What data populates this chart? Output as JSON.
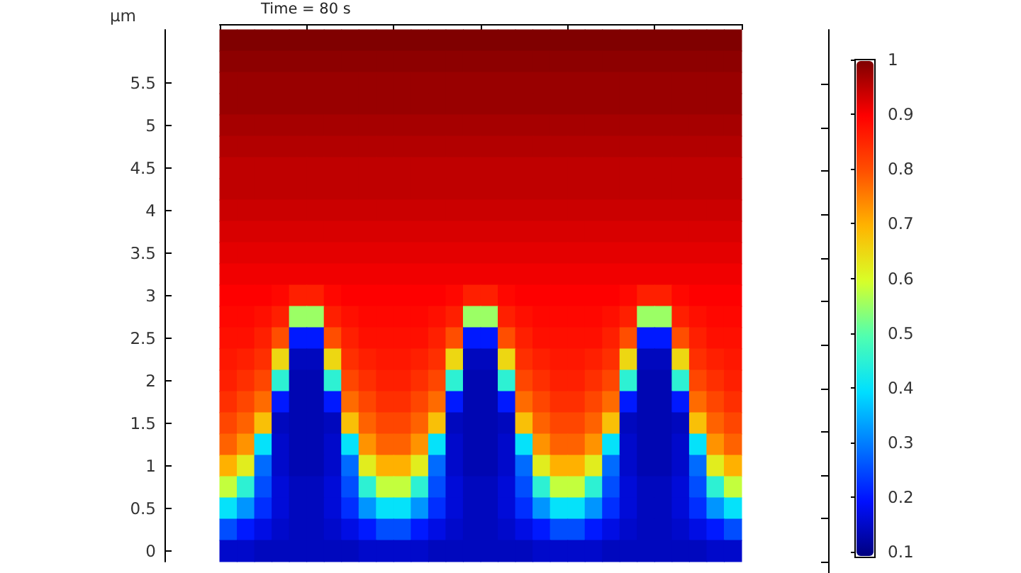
{
  "chart_data": {
    "type": "heatmap",
    "title": "Time = 80 s",
    "ylabel": "µm",
    "categories": [
      null,
      null,
      null,
      null,
      null,
      null,
      null,
      null,
      null,
      null,
      null,
      null,
      null,
      null,
      null,
      null,
      null,
      null,
      null,
      null,
      null,
      null,
      null,
      null,
      null,
      null,
      null,
      null,
      null,
      null
    ],
    "y_categories": [
      null,
      null,
      "5.5",
      null,
      "5",
      null,
      "4.5",
      null,
      "4",
      null,
      "3.5",
      null,
      "3",
      null,
      "2.5",
      null,
      "2",
      null,
      "1.5",
      null,
      "1",
      null,
      "0.5",
      null,
      "0"
    ],
    "clim": [
      0.09,
      1
    ],
    "cticks": [
      0.1,
      0.2,
      0.3,
      0.4,
      0.5,
      0.6,
      0.7,
      0.8,
      0.9,
      1
    ],
    "cells": [
      [
        1,
        1,
        1,
        1,
        1,
        1,
        1,
        1,
        1,
        1,
        1,
        1,
        1,
        1,
        1,
        1,
        1,
        1,
        1,
        1,
        1,
        1,
        1,
        1,
        1,
        1,
        1,
        1,
        1,
        1
      ],
      [
        0.99,
        0.99,
        0.99,
        0.99,
        0.99,
        0.99,
        0.99,
        0.99,
        0.99,
        0.99,
        0.99,
        0.99,
        0.99,
        0.99,
        0.99,
        0.99,
        0.99,
        0.99,
        0.99,
        0.99,
        0.99,
        0.99,
        0.99,
        0.99,
        0.99,
        0.99,
        0.99,
        0.99,
        0.99,
        0.99
      ],
      [
        0.98,
        0.98,
        0.98,
        0.98,
        0.98,
        0.98,
        0.98,
        0.98,
        0.98,
        0.98,
        0.98,
        0.98,
        0.98,
        0.98,
        0.98,
        0.98,
        0.98,
        0.98,
        0.98,
        0.98,
        0.98,
        0.98,
        0.98,
        0.98,
        0.98,
        0.98,
        0.98,
        0.98,
        0.98,
        0.98
      ],
      [
        0.98,
        0.98,
        0.98,
        0.98,
        0.98,
        0.98,
        0.98,
        0.98,
        0.98,
        0.98,
        0.98,
        0.98,
        0.98,
        0.98,
        0.98,
        0.98,
        0.98,
        0.98,
        0.98,
        0.98,
        0.98,
        0.98,
        0.98,
        0.98,
        0.98,
        0.98,
        0.98,
        0.98,
        0.98,
        0.98
      ],
      [
        0.97,
        0.97,
        0.97,
        0.97,
        0.97,
        0.97,
        0.97,
        0.97,
        0.97,
        0.97,
        0.97,
        0.97,
        0.97,
        0.97,
        0.97,
        0.97,
        0.97,
        0.97,
        0.97,
        0.97,
        0.97,
        0.97,
        0.97,
        0.97,
        0.97,
        0.97,
        0.97,
        0.97,
        0.97,
        0.97
      ],
      [
        0.96,
        0.96,
        0.96,
        0.96,
        0.96,
        0.96,
        0.96,
        0.96,
        0.96,
        0.96,
        0.96,
        0.96,
        0.96,
        0.96,
        0.96,
        0.96,
        0.96,
        0.96,
        0.96,
        0.96,
        0.96,
        0.96,
        0.96,
        0.96,
        0.96,
        0.96,
        0.96,
        0.96,
        0.96,
        0.96
      ],
      [
        0.95,
        0.95,
        0.95,
        0.95,
        0.95,
        0.95,
        0.95,
        0.95,
        0.95,
        0.95,
        0.95,
        0.95,
        0.95,
        0.95,
        0.95,
        0.95,
        0.95,
        0.95,
        0.95,
        0.95,
        0.95,
        0.95,
        0.95,
        0.95,
        0.95,
        0.95,
        0.95,
        0.95,
        0.95,
        0.95
      ],
      [
        0.95,
        0.95,
        0.95,
        0.95,
        0.95,
        0.95,
        0.95,
        0.95,
        0.95,
        0.95,
        0.95,
        0.95,
        0.95,
        0.95,
        0.95,
        0.95,
        0.95,
        0.95,
        0.95,
        0.95,
        0.95,
        0.95,
        0.95,
        0.95,
        0.95,
        0.95,
        0.95,
        0.95,
        0.95,
        0.95
      ],
      [
        0.94,
        0.94,
        0.94,
        0.94,
        0.94,
        0.94,
        0.94,
        0.94,
        0.94,
        0.94,
        0.94,
        0.94,
        0.94,
        0.94,
        0.94,
        0.94,
        0.94,
        0.94,
        0.94,
        0.94,
        0.94,
        0.94,
        0.94,
        0.94,
        0.94,
        0.94,
        0.94,
        0.94,
        0.94,
        0.94
      ],
      [
        0.93,
        0.93,
        0.93,
        0.93,
        0.93,
        0.93,
        0.93,
        0.93,
        0.93,
        0.93,
        0.93,
        0.93,
        0.93,
        0.93,
        0.93,
        0.93,
        0.93,
        0.93,
        0.93,
        0.93,
        0.93,
        0.93,
        0.93,
        0.93,
        0.93,
        0.93,
        0.93,
        0.93,
        0.93,
        0.93
      ],
      [
        0.92,
        0.92,
        0.92,
        0.92,
        0.92,
        0.92,
        0.92,
        0.92,
        0.92,
        0.92,
        0.92,
        0.92,
        0.92,
        0.92,
        0.92,
        0.92,
        0.92,
        0.92,
        0.92,
        0.92,
        0.92,
        0.92,
        0.92,
        0.92,
        0.92,
        0.92,
        0.92,
        0.92,
        0.92,
        0.92
      ],
      [
        0.91,
        0.91,
        0.91,
        0.91,
        0.91,
        0.91,
        0.91,
        0.91,
        0.91,
        0.91,
        0.91,
        0.91,
        0.91,
        0.91,
        0.91,
        0.91,
        0.91,
        0.91,
        0.91,
        0.91,
        0.91,
        0.91,
        0.91,
        0.91,
        0.91,
        0.91,
        0.91,
        0.91,
        0.91,
        0.91
      ],
      [
        0.9,
        0.9,
        0.9,
        0.89,
        0.86,
        0.86,
        0.89,
        0.9,
        0.9,
        0.9,
        0.9,
        0.9,
        0.9,
        0.89,
        0.86,
        0.86,
        0.89,
        0.9,
        0.9,
        0.9,
        0.9,
        0.9,
        0.9,
        0.89,
        0.86,
        0.86,
        0.89,
        0.9,
        0.9,
        0.9
      ],
      [
        0.89,
        0.89,
        0.88,
        0.86,
        0.55,
        0.55,
        0.86,
        0.88,
        0.89,
        0.89,
        0.89,
        0.89,
        0.88,
        0.86,
        0.55,
        0.55,
        0.86,
        0.88,
        0.89,
        0.89,
        0.89,
        0.89,
        0.88,
        0.86,
        0.55,
        0.55,
        0.86,
        0.88,
        0.89,
        0.89
      ],
      [
        0.88,
        0.88,
        0.86,
        0.8,
        0.2,
        0.2,
        0.8,
        0.86,
        0.88,
        0.88,
        0.88,
        0.88,
        0.86,
        0.8,
        0.2,
        0.2,
        0.8,
        0.86,
        0.88,
        0.88,
        0.88,
        0.88,
        0.86,
        0.8,
        0.2,
        0.2,
        0.8,
        0.86,
        0.88,
        0.88
      ],
      [
        0.87,
        0.86,
        0.84,
        0.65,
        0.14,
        0.14,
        0.65,
        0.84,
        0.86,
        0.87,
        0.87,
        0.86,
        0.84,
        0.65,
        0.14,
        0.14,
        0.65,
        0.84,
        0.86,
        0.87,
        0.87,
        0.86,
        0.84,
        0.65,
        0.14,
        0.14,
        0.65,
        0.84,
        0.86,
        0.87
      ],
      [
        0.86,
        0.84,
        0.81,
        0.45,
        0.13,
        0.13,
        0.45,
        0.81,
        0.84,
        0.86,
        0.86,
        0.84,
        0.81,
        0.45,
        0.13,
        0.13,
        0.45,
        0.81,
        0.84,
        0.86,
        0.86,
        0.84,
        0.81,
        0.45,
        0.13,
        0.13,
        0.45,
        0.81,
        0.84,
        0.86
      ],
      [
        0.84,
        0.81,
        0.77,
        0.2,
        0.13,
        0.13,
        0.2,
        0.77,
        0.81,
        0.84,
        0.84,
        0.81,
        0.77,
        0.2,
        0.13,
        0.13,
        0.2,
        0.77,
        0.81,
        0.84,
        0.84,
        0.81,
        0.77,
        0.2,
        0.13,
        0.13,
        0.2,
        0.77,
        0.81,
        0.84
      ],
      [
        0.81,
        0.78,
        0.68,
        0.14,
        0.13,
        0.13,
        0.14,
        0.68,
        0.78,
        0.81,
        0.81,
        0.78,
        0.68,
        0.14,
        0.13,
        0.13,
        0.14,
        0.68,
        0.78,
        0.81,
        0.81,
        0.78,
        0.68,
        0.14,
        0.13,
        0.13,
        0.14,
        0.68,
        0.78,
        0.81
      ],
      [
        0.78,
        0.73,
        0.4,
        0.15,
        0.13,
        0.13,
        0.15,
        0.4,
        0.73,
        0.78,
        0.78,
        0.73,
        0.4,
        0.15,
        0.13,
        0.13,
        0.15,
        0.4,
        0.73,
        0.78,
        0.78,
        0.73,
        0.4,
        0.15,
        0.13,
        0.13,
        0.15,
        0.4,
        0.73,
        0.78
      ],
      [
        0.7,
        0.62,
        0.28,
        0.15,
        0.13,
        0.13,
        0.15,
        0.28,
        0.62,
        0.7,
        0.7,
        0.62,
        0.28,
        0.15,
        0.13,
        0.13,
        0.15,
        0.28,
        0.62,
        0.7,
        0.7,
        0.62,
        0.28,
        0.15,
        0.13,
        0.13,
        0.15,
        0.28,
        0.62,
        0.7
      ],
      [
        0.58,
        0.45,
        0.25,
        0.16,
        0.14,
        0.14,
        0.16,
        0.25,
        0.45,
        0.58,
        0.58,
        0.45,
        0.25,
        0.16,
        0.14,
        0.14,
        0.16,
        0.25,
        0.45,
        0.58,
        0.58,
        0.45,
        0.25,
        0.16,
        0.14,
        0.14,
        0.16,
        0.25,
        0.45,
        0.58
      ],
      [
        0.4,
        0.32,
        0.22,
        0.16,
        0.14,
        0.14,
        0.16,
        0.22,
        0.32,
        0.4,
        0.4,
        0.32,
        0.22,
        0.16,
        0.14,
        0.14,
        0.16,
        0.22,
        0.32,
        0.4,
        0.4,
        0.32,
        0.22,
        0.16,
        0.14,
        0.14,
        0.16,
        0.22,
        0.32,
        0.4
      ],
      [
        0.25,
        0.2,
        0.17,
        0.15,
        0.14,
        0.14,
        0.15,
        0.17,
        0.2,
        0.25,
        0.25,
        0.2,
        0.17,
        0.15,
        0.14,
        0.14,
        0.15,
        0.17,
        0.2,
        0.25,
        0.25,
        0.2,
        0.17,
        0.15,
        0.14,
        0.14,
        0.15,
        0.17,
        0.2,
        0.25
      ],
      [
        0.15,
        0.15,
        0.14,
        0.14,
        0.14,
        0.14,
        0.14,
        0.14,
        0.15,
        0.15,
        0.15,
        0.15,
        0.14,
        0.14,
        0.14,
        0.14,
        0.14,
        0.14,
        0.15,
        0.15,
        0.15,
        0.15,
        0.14,
        0.14,
        0.14,
        0.14,
        0.14,
        0.14,
        0.15,
        0.15
      ]
    ]
  }
}
